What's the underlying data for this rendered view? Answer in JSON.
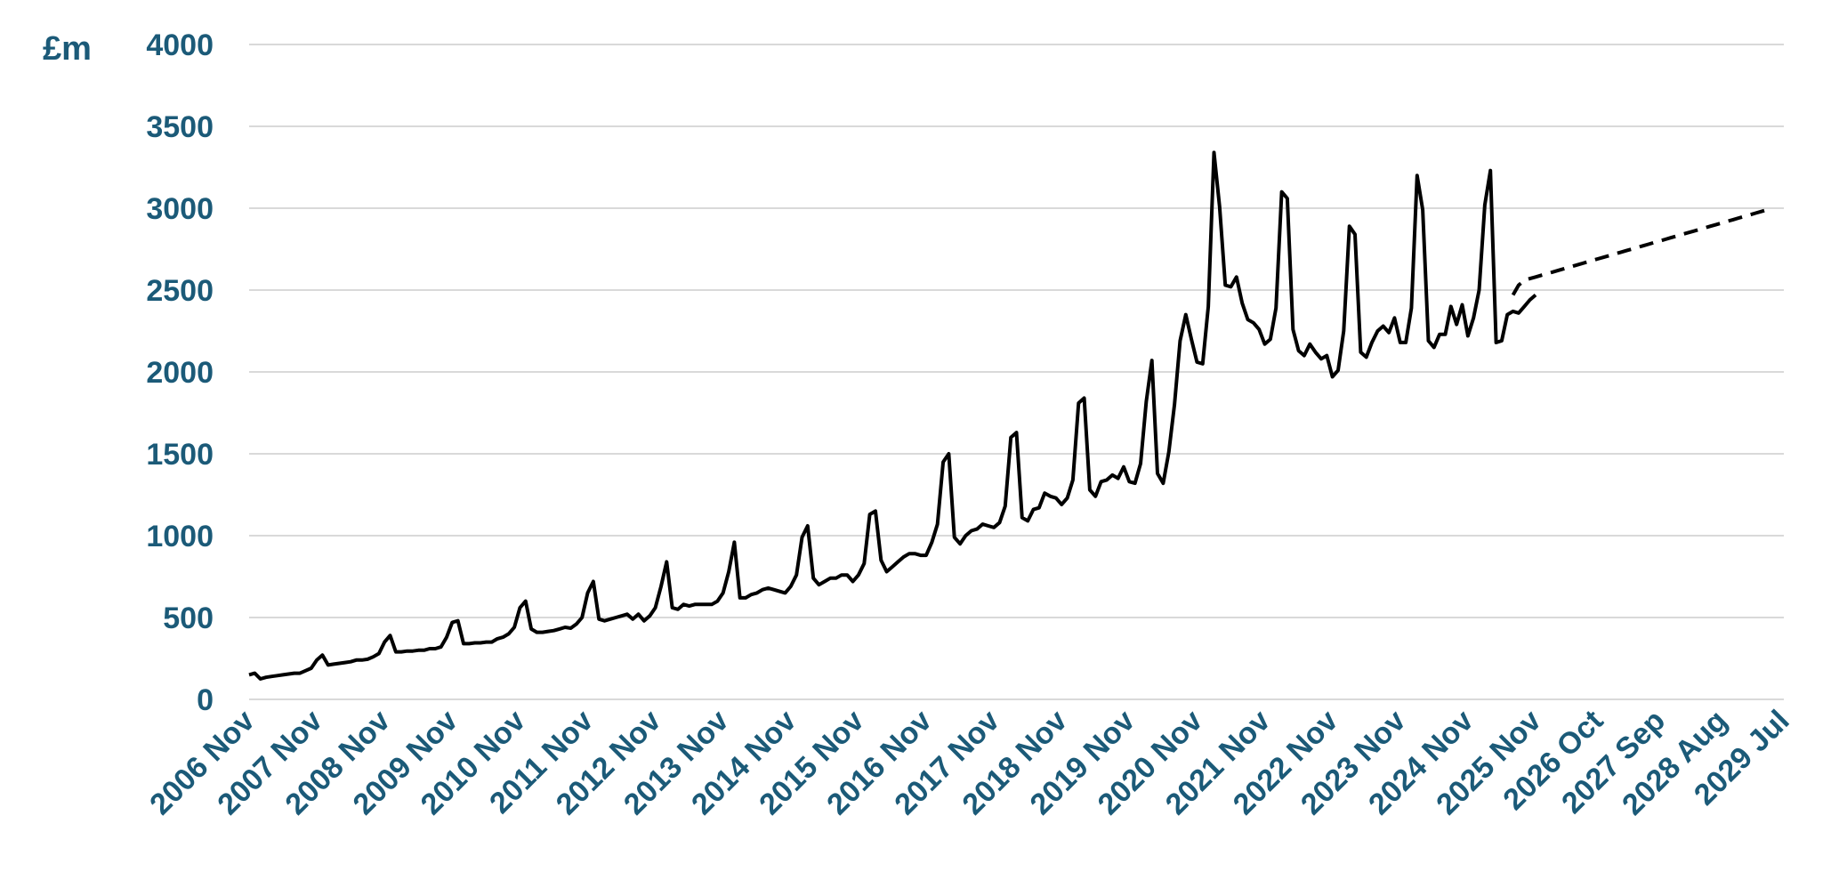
{
  "chart_data": {
    "type": "line",
    "ylabel": "£m",
    "ylim": [
      0,
      4000
    ],
    "yticks": [
      0,
      500,
      1000,
      1500,
      2000,
      2500,
      3000,
      3500,
      4000
    ],
    "ytick_labels": [
      "0",
      "500",
      "1000",
      "1500",
      "2000",
      "2500",
      "3000",
      "3500",
      "4000"
    ],
    "grid": true,
    "xtick_labels": [
      "2006 Nov",
      "2007 Nov",
      "2008 Nov",
      "2009 Nov",
      "2010 Nov",
      "2011 Nov",
      "2012 Nov",
      "2013 Nov",
      "2014 Nov",
      "2015 Nov",
      "2016 Nov",
      "2017 Nov",
      "2018 Nov",
      "2019 Nov",
      "2020 Nov",
      "2021 Nov",
      "2022 Nov",
      "2023 Nov",
      "2024 Nov",
      "2025 Nov",
      "2026 Oct",
      "2027 Sep",
      "2028 Aug",
      "2029 Jul"
    ],
    "colors": {
      "axis_text": "#1b5a78",
      "line": "#000000",
      "grid": "#d9d9d9"
    },
    "series": [
      {
        "style": "solid",
        "start": "2006 Nov",
        "frequency": "monthly",
        "values": [
          150,
          160,
          125,
          135,
          140,
          145,
          150,
          155,
          160,
          160,
          175,
          190,
          240,
          270,
          210,
          215,
          220,
          225,
          230,
          240,
          240,
          245,
          260,
          280,
          350,
          390,
          290,
          290,
          295,
          295,
          300,
          300,
          310,
          310,
          320,
          380,
          470,
          480,
          340,
          340,
          345,
          345,
          350,
          350,
          370,
          380,
          400,
          440,
          560,
          600,
          430,
          410,
          410,
          415,
          420,
          430,
          440,
          435,
          460,
          500,
          650,
          720,
          490,
          480,
          490,
          500,
          510,
          520,
          490,
          520,
          480,
          510,
          560,
          690,
          840,
          560,
          550,
          580,
          570,
          580,
          580,
          580,
          580,
          600,
          650,
          780,
          960,
          620,
          620,
          640,
          650,
          670,
          680,
          670,
          660,
          650,
          690,
          760,
          990,
          1060,
          740,
          700,
          720,
          740,
          740,
          760,
          760,
          720,
          760,
          830,
          1130,
          1150,
          850,
          780,
          810,
          840,
          870,
          890,
          890,
          880,
          880,
          960,
          1070,
          1450,
          1500,
          990,
          950,
          1000,
          1030,
          1040,
          1070,
          1060,
          1050,
          1080,
          1180,
          1600,
          1630,
          1110,
          1090,
          1160,
          1170,
          1260,
          1240,
          1230,
          1190,
          1230,
          1340,
          1810,
          1840,
          1280,
          1240,
          1330,
          1340,
          1370,
          1350,
          1420,
          1330,
          1320,
          1440,
          1820,
          2070,
          1380,
          1320,
          1510,
          1800,
          2190,
          2350,
          2200,
          2060,
          2050,
          2400,
          3340,
          3010,
          2530,
          2520,
          2580,
          2420,
          2320,
          2300,
          2260,
          2170,
          2200,
          2390,
          3100,
          3060,
          2260,
          2130,
          2100,
          2170,
          2120,
          2080,
          2100,
          1970,
          2010,
          2250,
          2890,
          2840,
          2120,
          2090,
          2180,
          2250,
          2280,
          2240,
          2330,
          2180,
          2180,
          2390,
          3200,
          2990,
          2190,
          2150,
          2230,
          2230,
          2400,
          2290,
          2410,
          2220,
          2330,
          2500,
          3020,
          3230,
          2180,
          2190,
          2350,
          2370,
          2360,
          2400,
          2440,
          2470
        ]
      },
      {
        "style": "dashed",
        "start": "2025 Jul",
        "frequency": "monthly",
        "values": [
          2470,
          2530,
          2560,
          2570,
          2580,
          2590,
          2600,
          2610,
          2620,
          2630,
          2640,
          2650,
          2660,
          2670,
          2680,
          2690,
          2700,
          2710,
          2720,
          2730,
          2740,
          2750,
          2760,
          2770,
          2780,
          2790,
          2800,
          2810,
          2820,
          2830,
          2840,
          2850,
          2860,
          2870,
          2880,
          2890,
          2900,
          2910,
          2920,
          2930,
          2940,
          2950,
          2960,
          2970,
          2980,
          2990,
          3000
        ]
      }
    ]
  }
}
